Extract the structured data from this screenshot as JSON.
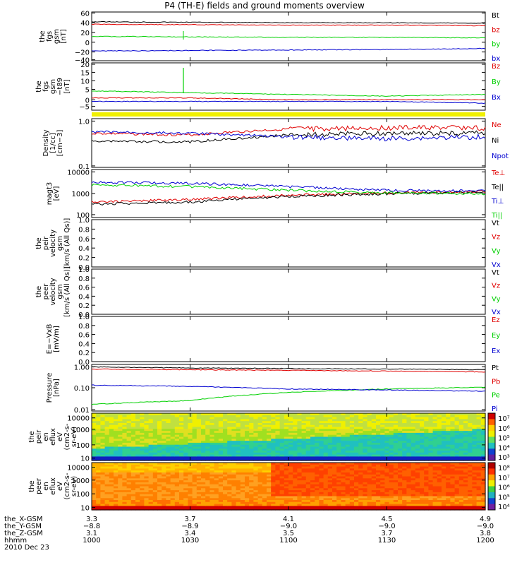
{
  "title": "P4 (TH-E) fields and ground moments overview",
  "colors": {
    "black": "#000000",
    "red": "#e00000",
    "green": "#00d000",
    "blue": "#0000d0",
    "yellow": "#f0f000"
  },
  "panels": [
    {
      "id": "fgs-gsm",
      "ylabel": [
        "the",
        "fgs",
        "gsm",
        "[nT]"
      ],
      "yticks": [
        "60",
        "40",
        "20",
        "0",
        "−20",
        "−40"
      ],
      "legend": [
        {
          "text": "Bt",
          "color": "black"
        },
        {
          "text": "bz",
          "color": "red"
        },
        {
          "text": "by",
          "color": "green"
        },
        {
          "text": "bx",
          "color": "blue"
        }
      ]
    },
    {
      "id": "fgs-gsm-t89",
      "ylabel": [
        "the",
        "fgs",
        "gsm",
        "−t89",
        "[nT]"
      ],
      "yticks": [
        "20",
        "15",
        "10",
        "5",
        "0",
        "−5"
      ],
      "legend": [
        {
          "text": "Bz",
          "color": "red"
        },
        {
          "text": "By",
          "color": "green"
        },
        {
          "text": "Bx",
          "color": "blue"
        }
      ]
    },
    {
      "id": "density",
      "ylabel": [
        "Density",
        "[1/cc]",
        "[cm−3]"
      ],
      "yticks": [
        "1.0",
        "0.1"
      ],
      "legend": [
        {
          "text": "Ne",
          "color": "red"
        },
        {
          "text": "Ni",
          "color": "black"
        },
        {
          "text": "Npot",
          "color": "blue"
        }
      ]
    },
    {
      "id": "temperature",
      "ylabel": [
        "magt3",
        "[eV]"
      ],
      "yticks": [
        "10000",
        "1000",
        "100"
      ],
      "legend": [
        {
          "text": "Te⊥",
          "color": "red"
        },
        {
          "text": "Te||",
          "color": "black"
        },
        {
          "text": "Ti⊥",
          "color": "blue"
        },
        {
          "text": "Ti||",
          "color": "green"
        }
      ]
    },
    {
      "id": "peir-velocity",
      "ylabel": [
        "the",
        "peir",
        "velocity",
        "gsm",
        "[km/s (All Qs)]"
      ],
      "yticks": [
        "1.0",
        "0.8",
        "0.6",
        "0.4",
        "0.2",
        "0.0"
      ],
      "legend": [
        {
          "text": "Vt",
          "color": "black"
        },
        {
          "text": "Vz",
          "color": "red"
        },
        {
          "text": "Vy",
          "color": "green"
        },
        {
          "text": "Vx",
          "color": "blue"
        }
      ]
    },
    {
      "id": "peer-velocity",
      "ylabel": [
        "the",
        "peer",
        "velocity",
        "gsm",
        "[km/s (All Qs)]"
      ],
      "yticks": [
        "1.0",
        "0.8",
        "0.6",
        "0.4",
        "0.2",
        "0.0"
      ],
      "legend": [
        {
          "text": "Vt",
          "color": "black"
        },
        {
          "text": "Vz",
          "color": "red"
        },
        {
          "text": "Vy",
          "color": "green"
        },
        {
          "text": "Vx",
          "color": "blue"
        }
      ]
    },
    {
      "id": "e-vxb",
      "ylabel": [
        "E=−VxB",
        "[mV/m]"
      ],
      "yticks": [
        "1.0",
        "0.8",
        "0.6",
        "0.4",
        "0.2",
        "0.0"
      ],
      "legend": [
        {
          "text": "Ez",
          "color": "red"
        },
        {
          "text": "Ey",
          "color": "green"
        },
        {
          "text": "Ex",
          "color": "blue"
        }
      ]
    },
    {
      "id": "pressure",
      "ylabel": [
        "Pressure",
        "[nPa]"
      ],
      "yticks": [
        "1.00",
        "0.10",
        "0.01"
      ],
      "legend": [
        {
          "text": "Pt",
          "color": "black"
        },
        {
          "text": "Pb",
          "color": "red"
        },
        {
          "text": "Pe",
          "color": "green"
        },
        {
          "text": "Pi",
          "color": "blue"
        }
      ]
    },
    {
      "id": "peir-eflux",
      "ylabel": [
        "the",
        "peir",
        "en",
        "eflux",
        "eV",
        "(cm2-s-",
        "sr-eV)"
      ],
      "yticks": [
        "10000",
        "1000",
        "100",
        "10"
      ],
      "cbar": [
        "10⁷",
        "10⁶",
        "10⁵",
        "10⁴",
        "10³"
      ]
    },
    {
      "id": "peer-eflux",
      "ylabel": [
        "the",
        "peer",
        "en",
        "eflux",
        "eV",
        "(cm2-s-",
        "sr-eV)"
      ],
      "yticks": [
        "10000",
        "1000",
        "100",
        "10"
      ],
      "cbar": [
        "10⁸",
        "10⁷",
        "10⁶",
        "10⁵",
        "10⁴"
      ]
    }
  ],
  "xaxis": {
    "row_labels": [
      "the_X-GSM",
      "the_Y-GSM",
      "the_Z-GSM",
      "hhmm",
      "2010 Dec 23"
    ],
    "columns": [
      {
        "x_gsm": "3.3",
        "y_gsm": "−8.8",
        "z_gsm": "3.1",
        "hhmm": "1000"
      },
      {
        "x_gsm": "3.7",
        "y_gsm": "−8.9",
        "z_gsm": "3.4",
        "hhmm": "1030"
      },
      {
        "x_gsm": "4.1",
        "y_gsm": "−9.0",
        "z_gsm": "3.5",
        "hhmm": "1100"
      },
      {
        "x_gsm": "4.5",
        "y_gsm": "−9.0",
        "z_gsm": "3.7",
        "hhmm": "1130"
      },
      {
        "x_gsm": "4.9",
        "y_gsm": "−9.0",
        "z_gsm": "3.8",
        "hhmm": "1200"
      }
    ]
  },
  "chart_data": [
    {
      "type": "line",
      "panel": "fgs-gsm",
      "x": [
        "1000",
        "1030",
        "1100",
        "1130",
        "1200"
      ],
      "ylim": [
        -40,
        60
      ],
      "series": [
        {
          "name": "Bt",
          "values": [
            40,
            39,
            38,
            38,
            37
          ]
        },
        {
          "name": "bz",
          "values": [
            35,
            34,
            33,
            33,
            32
          ]
        },
        {
          "name": "by",
          "values": [
            10,
            9,
            8,
            8,
            7
          ]
        },
        {
          "name": "bx",
          "values": [
            -20,
            -19,
            -18,
            -17,
            -15
          ]
        }
      ]
    },
    {
      "type": "line",
      "panel": "fgs-gsm-t89",
      "x": [
        "1000",
        "1030",
        "1100",
        "1130",
        "1200"
      ],
      "ylim": [
        -7,
        20
      ],
      "series": [
        {
          "name": "Bz",
          "values": [
            0,
            0,
            -1,
            -1,
            -1
          ]
        },
        {
          "name": "By",
          "values": [
            4,
            3,
            2,
            1,
            2
          ]
        },
        {
          "name": "Bx",
          "values": [
            -2,
            -2,
            -2,
            -2,
            -3
          ]
        }
      ]
    },
    {
      "type": "line",
      "panel": "density",
      "x": [
        "1000",
        "1030",
        "1100",
        "1130",
        "1200"
      ],
      "ylim": [
        0.1,
        1.3
      ],
      "log": true,
      "series": [
        {
          "name": "Ne",
          "values": [
            0.6,
            0.55,
            0.75,
            0.8,
            0.8
          ]
        },
        {
          "name": "Ni",
          "values": [
            0.4,
            0.38,
            0.55,
            0.6,
            0.6
          ]
        },
        {
          "name": "Npot",
          "values": [
            0.65,
            0.6,
            0.5,
            0.45,
            0.5
          ]
        }
      ]
    },
    {
      "type": "line",
      "panel": "temperature",
      "x": [
        "1000",
        "1030",
        "1100",
        "1130",
        "1200"
      ],
      "ylim": [
        100,
        15000
      ],
      "log": true,
      "series": [
        {
          "name": "Te⊥",
          "values": [
            500,
            650,
            1000,
            1300,
            1500
          ]
        },
        {
          "name": "Te||",
          "values": [
            400,
            500,
            900,
            1200,
            1400
          ]
        },
        {
          "name": "Ti⊥",
          "values": [
            4000,
            3500,
            2500,
            1700,
            1600
          ]
        },
        {
          "name": "Ti||",
          "values": [
            3000,
            2500,
            1700,
            1300,
            1200
          ]
        }
      ]
    },
    {
      "type": "line",
      "panel": "pressure",
      "x": [
        "1000",
        "1030",
        "1100",
        "1130",
        "1200"
      ],
      "ylim": [
        0.01,
        1.3
      ],
      "log": true,
      "series": [
        {
          "name": "Pt",
          "values": [
            1.0,
            0.9,
            0.85,
            0.8,
            0.75
          ]
        },
        {
          "name": "Pb",
          "values": [
            0.8,
            0.75,
            0.7,
            0.65,
            0.6
          ]
        },
        {
          "name": "Pe",
          "values": [
            0.02,
            0.03,
            0.07,
            0.1,
            0.12
          ]
        },
        {
          "name": "Pi",
          "values": [
            0.15,
            0.13,
            0.1,
            0.09,
            0.08
          ]
        }
      ]
    }
  ]
}
